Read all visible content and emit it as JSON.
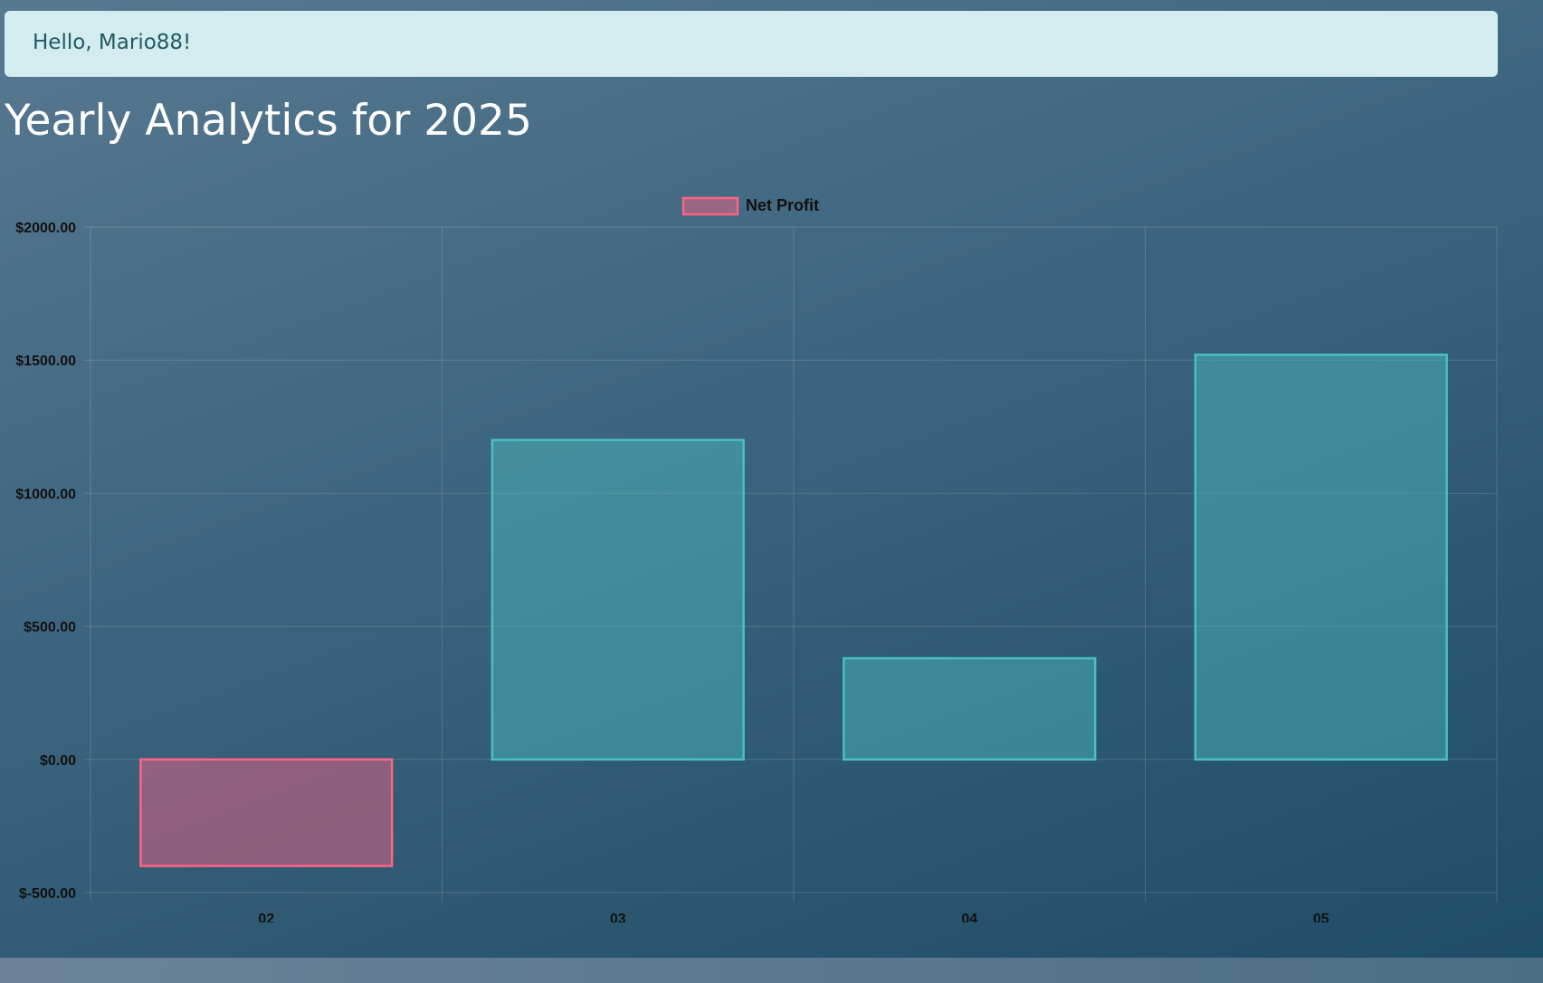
{
  "header": {
    "greeting": "Hello, Mario88!"
  },
  "page": {
    "title": "Yearly Analytics for 2025"
  },
  "colors": {
    "positive_fill": "rgba(75,192,192,0.45)",
    "positive_stroke": "#4bc0c0",
    "negative_fill": "rgba(255,99,132,0.45)",
    "negative_stroke": "#ff6384",
    "grid": "rgba(255,255,255,0.15)"
  },
  "chart_data": {
    "type": "bar",
    "title": "",
    "categories": [
      "02",
      "03",
      "04",
      "05"
    ],
    "series": [
      {
        "name": "Net Profit",
        "values": [
          -400,
          1200,
          380,
          1520
        ]
      }
    ],
    "xlabel": "",
    "ylabel": "",
    "ylim": [
      -500,
      2000
    ],
    "y_ticks": [
      2000,
      1500,
      1000,
      500,
      0,
      -500
    ],
    "y_tick_labels": [
      "$2000.00",
      "$1500.00",
      "$1000.00",
      "$500.00",
      "$0.00",
      "$-500.00"
    ],
    "grid": true,
    "legend_position": "top"
  }
}
